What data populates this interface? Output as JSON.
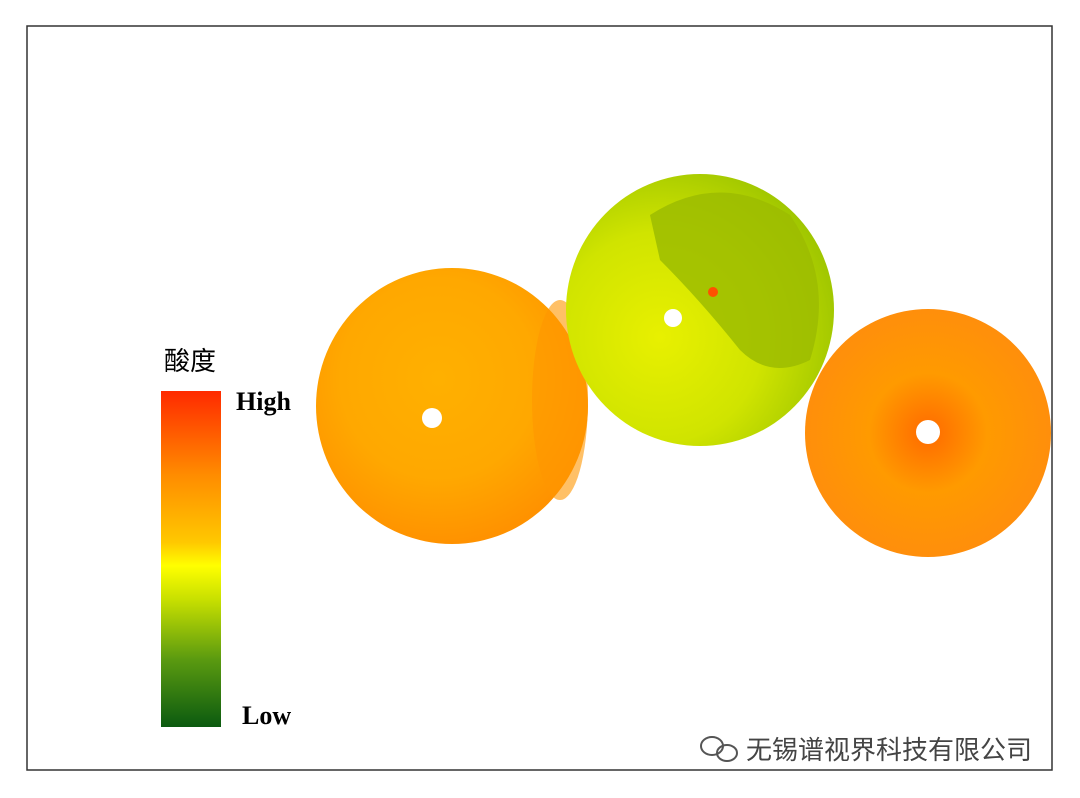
{
  "legend": {
    "title": "酸度",
    "high": "High",
    "low": "Low"
  },
  "watermark": "无锡谱视界科技有限公司"
}
